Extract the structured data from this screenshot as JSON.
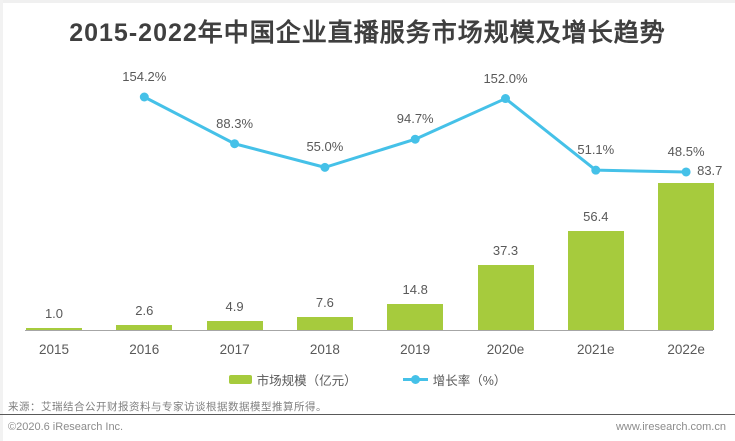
{
  "title": "2015-2022年中国企业直播服务市场规模及增长趋势",
  "chart_data": {
    "type": "bar+line",
    "title": "2015-2022年中国企业直播服务市场规模及增长趋势",
    "categories": [
      "2015",
      "2016",
      "2017",
      "2018",
      "2019",
      "2020e",
      "2021e",
      "2022e"
    ],
    "series": [
      {
        "name": "市场规模（亿元）",
        "type": "bar",
        "values": [
          1.0,
          2.6,
          4.9,
          7.6,
          14.8,
          37.3,
          56.4,
          83.7
        ],
        "color": "#a6cb3d"
      },
      {
        "name": "增长率（%）",
        "type": "line",
        "values": [
          null,
          154.2,
          88.3,
          55.0,
          94.7,
          152.0,
          51.1,
          48.5
        ],
        "color": "#45c1e8"
      }
    ],
    "bar_labels": [
      "1.0",
      "2.6",
      "4.9",
      "7.6",
      "14.8",
      "37.3",
      "56.4",
      "83.7"
    ],
    "line_labels": [
      null,
      "154.2%",
      "88.3%",
      "55.0%",
      "94.7%",
      "152.0%",
      "51.1%",
      "48.5%"
    ],
    "bar_ylim": [
      0,
      95
    ],
    "line_ylim": [
      0,
      215
    ],
    "grid": false,
    "value_labels_shown": true,
    "legend_position": "bottom"
  },
  "legend": {
    "bar_label": "市场规模（亿元）",
    "line_label": "增长率（%）"
  },
  "footer": {
    "source": "来源：艾瑞结合公开财报资料与专家访谈根据数据模型推算所得。",
    "copyright": "©2020.6 iResearch Inc.",
    "website": "www.iresearch.com.cn"
  },
  "colors": {
    "bar": "#a6cb3d",
    "line": "#45c1e8",
    "title_text": "#3f3f3f",
    "label_text": "#595959"
  }
}
